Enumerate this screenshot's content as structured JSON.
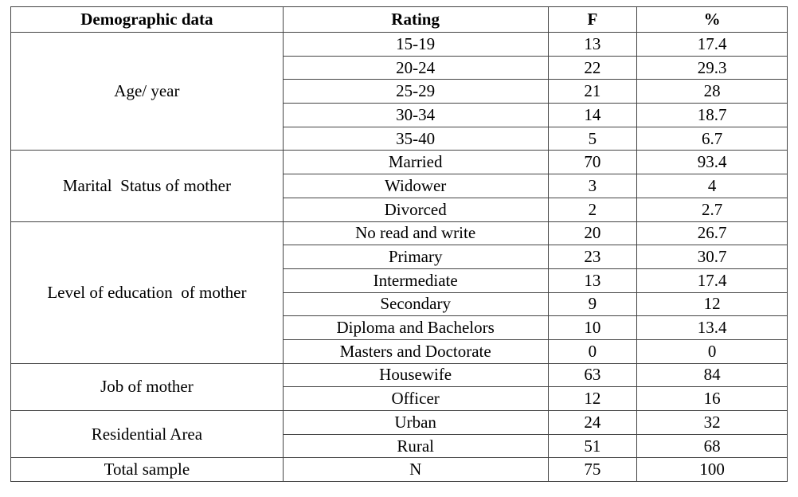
{
  "table": {
    "header": [
      "Demographic data",
      "Rating",
      "F",
      "%"
    ],
    "groups": [
      {
        "label": "Age/ year",
        "rows": [
          [
            "15-19",
            "13",
            "17.4"
          ],
          [
            "20-24",
            "22",
            "29.3"
          ],
          [
            "25-29",
            "21",
            "28"
          ],
          [
            "30-34",
            "14",
            "18.7"
          ],
          [
            "35-40",
            "5",
            "6.7"
          ]
        ]
      },
      {
        "label": "Marital  Status of mother",
        "rows": [
          [
            "Married",
            "70",
            "93.4"
          ],
          [
            "Widower",
            "3",
            "4"
          ],
          [
            "Divorced",
            "2",
            "2.7"
          ]
        ]
      },
      {
        "label": "Level of education  of mother",
        "rows": [
          [
            "No read and write",
            "20",
            "26.7"
          ],
          [
            "Primary",
            "23",
            "30.7"
          ],
          [
            "Intermediate",
            "13",
            "17.4"
          ],
          [
            "Secondary",
            "9",
            "12"
          ],
          [
            "Diploma and Bachelors",
            "10",
            "13.4"
          ],
          [
            "Masters and Doctorate",
            "0",
            "0"
          ]
        ]
      },
      {
        "label": "Job of mother",
        "rows": [
          [
            "Housewife",
            "63",
            "84"
          ],
          [
            "Officer",
            "12",
            "16"
          ]
        ]
      },
      {
        "label": "Residential Area",
        "rows": [
          [
            "Urban",
            "24",
            "32"
          ],
          [
            "Rural",
            "51",
            "68"
          ]
        ]
      }
    ],
    "total": [
      "Total sample",
      "N",
      "75",
      "100"
    ]
  }
}
